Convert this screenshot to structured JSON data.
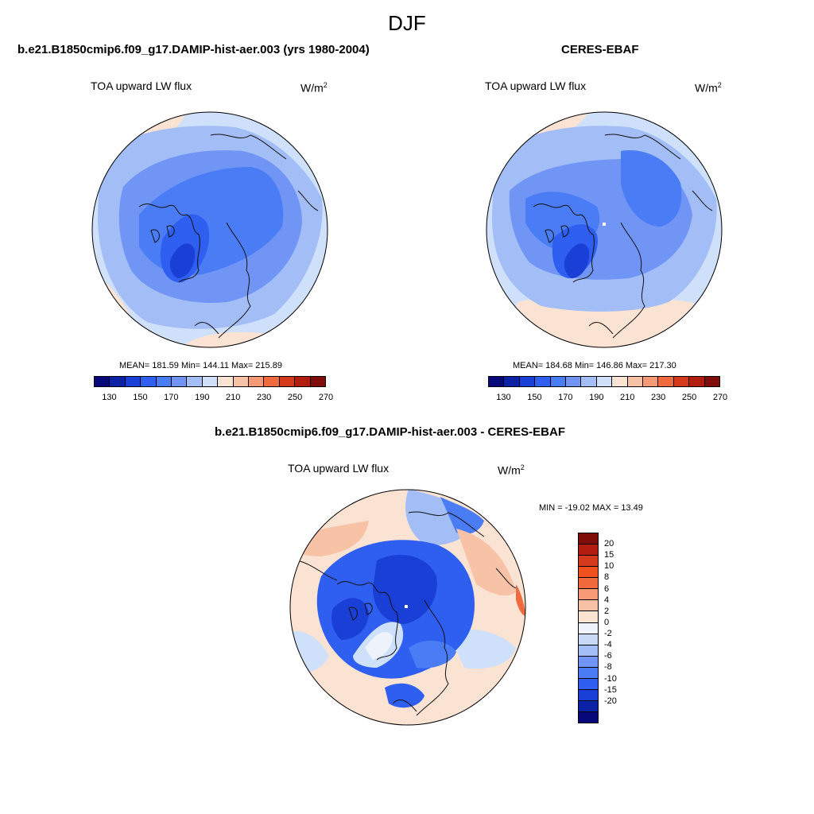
{
  "main_title": "DJF",
  "panels": [
    {
      "title": "b.e21.B1850cmip6.f09_g17.DAMIP-hist-aer.003 (yrs 1980-2004)",
      "var_label": "TOA upward LW flux",
      "units": "W/m",
      "units_sup": "2",
      "stats": "MEAN= 181.59  Min= 144.11  Max= 215.89",
      "mean": 181.59,
      "min": 144.11,
      "max": 215.89
    },
    {
      "title": "CERES-EBAF",
      "var_label": "TOA upward LW flux",
      "units": "W/m",
      "units_sup": "2",
      "stats": "MEAN= 184.68  Min= 146.86  Max= 217.30",
      "mean": 184.68,
      "min": 146.86,
      "max": 217.3
    },
    {
      "title": "b.e21.B1850cmip6.f09_g17.DAMIP-hist-aer.003 - CERES-EBAF",
      "var_label": "TOA upward LW flux",
      "units": "W/m",
      "units_sup": "2",
      "stats": "MIN = -19.02 MAX =  13.49",
      "min": -19.02,
      "max": 13.49
    }
  ],
  "colorbar_abs": {
    "colors": [
      "#08087a",
      "#0b22a8",
      "#1a3fd6",
      "#2e5ff0",
      "#4a7cf5",
      "#7095f5",
      "#a3bdf7",
      "#cfe0fa",
      "#fbe3d4",
      "#f7c2a6",
      "#f59a75",
      "#f06a3e",
      "#d63a1d",
      "#b21d10",
      "#800e08"
    ],
    "labels": [
      "130",
      "150",
      "170",
      "190",
      "210",
      "230",
      "250",
      "270"
    ]
  },
  "colorbar_diff": {
    "colors": [
      "#800e08",
      "#b21d10",
      "#d63a1d",
      "#f0501e",
      "#f06a3e",
      "#f59a75",
      "#f7c2a6",
      "#fbe3d4",
      "#eef3fb",
      "#c9daf7",
      "#a3bdf7",
      "#7095f5",
      "#4a7cf5",
      "#2e5ff0",
      "#1a3fd6",
      "#0b22a8",
      "#08087a"
    ],
    "labels": [
      "20",
      "15",
      "10",
      "8",
      "6",
      "4",
      "2",
      "0",
      "-2",
      "-4",
      "-6",
      "-8",
      "-10",
      "-15",
      "-20"
    ]
  }
}
